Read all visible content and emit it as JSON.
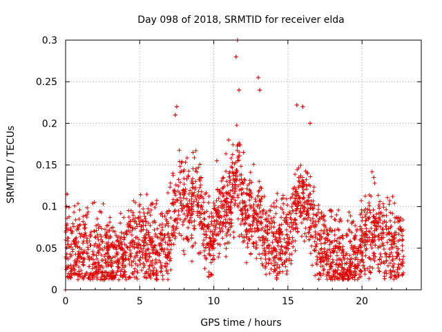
{
  "chart_data": {
    "type": "scatter",
    "title": "Day 098 of 2018, SRMTID for receiver elda",
    "xlabel": "GPS time / hours",
    "ylabel": "SRMTID / TECUs",
    "xlim": [
      0,
      24
    ],
    "ylim": [
      0,
      0.3
    ],
    "xticks": [
      0,
      5,
      10,
      15,
      20
    ],
    "xtick_labels": [
      "0",
      "5",
      "10",
      "15",
      "20"
    ],
    "yticks": [
      0,
      0.05,
      0.1,
      0.15,
      0.2,
      0.25,
      0.3
    ],
    "ytick_labels": [
      "0",
      "0.05",
      "0.1",
      "0.15",
      "0.2",
      "0.25",
      "0.3"
    ],
    "grid": true,
    "marker": "plus",
    "color": "#e00000",
    "series": [
      {
        "name": "SRMTID",
        "envelope": {
          "x": [
            0.0,
            0.5,
            1.0,
            1.5,
            2.0,
            2.5,
            3.0,
            3.5,
            4.0,
            4.5,
            5.0,
            5.5,
            6.0,
            6.5,
            7.0,
            7.2,
            7.4,
            7.6,
            7.8,
            8.0,
            8.3,
            8.6,
            9.0,
            9.5,
            10.0,
            10.3,
            10.6,
            11.0,
            11.3,
            11.5,
            11.7,
            12.0,
            12.3,
            12.6,
            13.0,
            13.3,
            13.6,
            14.0,
            14.5,
            15.0,
            15.5,
            15.8,
            16.0,
            16.3,
            16.6,
            17.0,
            17.5,
            18.0,
            18.5,
            19.0,
            19.5,
            20.0,
            20.5,
            20.8,
            21.0,
            21.5,
            22.0,
            22.5,
            22.8
          ],
          "y": [
            0.05,
            0.045,
            0.04,
            0.045,
            0.04,
            0.04,
            0.038,
            0.035,
            0.045,
            0.055,
            0.06,
            0.055,
            0.05,
            0.045,
            0.06,
            0.08,
            0.1,
            0.12,
            0.11,
            0.1,
            0.09,
            0.11,
            0.1,
            0.06,
            0.065,
            0.09,
            0.1,
            0.1,
            0.12,
            0.14,
            0.13,
            0.1,
            0.09,
            0.08,
            0.09,
            0.07,
            0.06,
            0.055,
            0.05,
            0.06,
            0.09,
            0.12,
            0.11,
            0.1,
            0.09,
            0.06,
            0.055,
            0.045,
            0.035,
            0.03,
            0.04,
            0.055,
            0.065,
            0.08,
            0.07,
            0.06,
            0.05,
            0.05,
            0.055
          ]
        },
        "spikes": [
          {
            "x": 0.1,
            "y": 0.115
          },
          {
            "x": 0.0,
            "y": 0.0
          },
          {
            "x": 7.5,
            "y": 0.22
          },
          {
            "x": 7.4,
            "y": 0.21
          },
          {
            "x": 8.6,
            "y": 0.165
          },
          {
            "x": 10.2,
            "y": 0.155
          },
          {
            "x": 11.0,
            "y": 0.18
          },
          {
            "x": 11.5,
            "y": 0.28
          },
          {
            "x": 11.6,
            "y": 0.3
          },
          {
            "x": 11.7,
            "y": 0.24
          },
          {
            "x": 12.0,
            "y": 0.165
          },
          {
            "x": 13.0,
            "y": 0.255
          },
          {
            "x": 13.1,
            "y": 0.24
          },
          {
            "x": 15.6,
            "y": 0.222
          },
          {
            "x": 16.0,
            "y": 0.22
          },
          {
            "x": 16.5,
            "y": 0.2
          },
          {
            "x": 20.8,
            "y": 0.135
          }
        ],
        "n_points": 2600,
        "spread": 0.025
      }
    ]
  }
}
